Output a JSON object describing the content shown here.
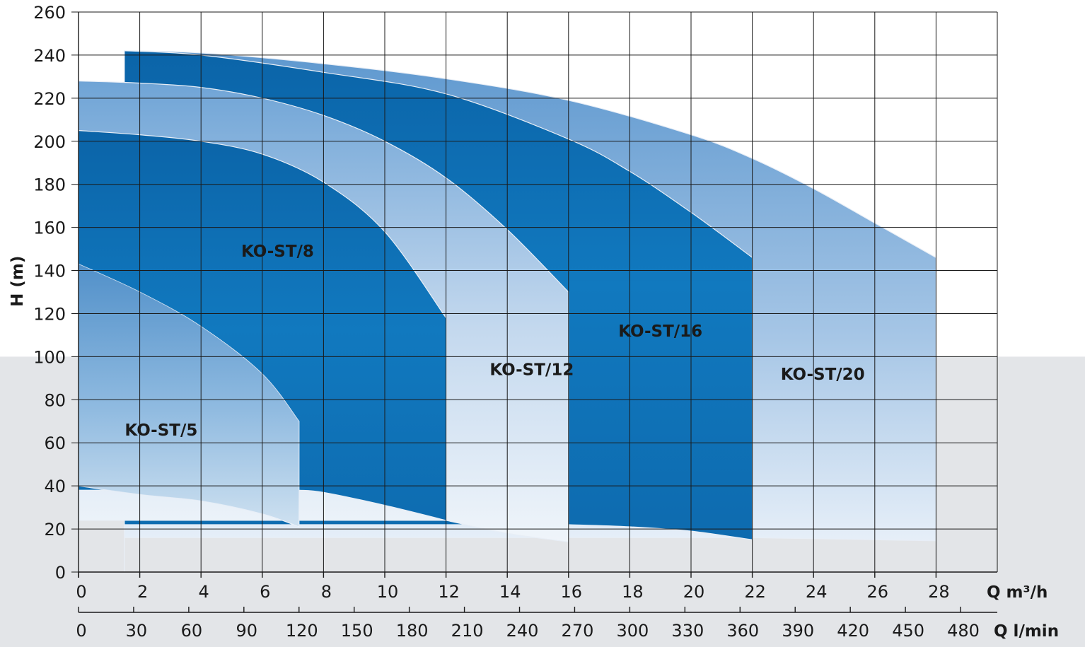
{
  "chart_data": {
    "type": "area",
    "ylabel": "H (m)",
    "x_unit_primary": "Q m³/h",
    "x_unit_secondary": "Q l/min",
    "xlim": [
      0,
      30
    ],
    "ylim": [
      0,
      260
    ],
    "x_ticks": [
      0,
      2,
      4,
      6,
      8,
      10,
      12,
      14,
      16,
      18,
      20,
      22,
      24,
      26,
      28
    ],
    "x_tick_labels": [
      "0",
      "2",
      "4",
      "6",
      "8",
      "10",
      "12",
      "14",
      "16",
      "18",
      "20",
      "22",
      "24",
      "26",
      "28"
    ],
    "x2_tick_labels": [
      "0",
      "30",
      "60",
      "90",
      "120",
      "150",
      "180",
      "210",
      "240",
      "270",
      "300",
      "330",
      "360",
      "390",
      "420",
      "450",
      "480"
    ],
    "y_ticks": [
      0,
      20,
      40,
      60,
      80,
      100,
      120,
      140,
      160,
      180,
      200,
      220,
      240,
      260
    ],
    "y_tick_labels": [
      "0",
      "20",
      "40",
      "60",
      "80",
      "100",
      "120",
      "140",
      "160",
      "180",
      "200",
      "220",
      "240",
      "260"
    ],
    "grid": true,
    "background_band_below_y": 100,
    "colors": {
      "dark_blue": "#0f6eb3",
      "light_blue": "#8fb7df",
      "pale": "#f2f6fb",
      "band_grey": "#e3e5e8",
      "grid": "#1a1a1a"
    },
    "series": [
      {
        "name": "KO-ST/20",
        "label_at": [
          24.3,
          92
        ],
        "x_range": [
          1.5,
          28
        ],
        "top": [
          [
            1.5,
            242
          ],
          [
            4,
            241
          ],
          [
            8,
            236
          ],
          [
            12,
            229
          ],
          [
            16,
            219
          ],
          [
            20,
            203
          ],
          [
            22,
            192
          ],
          [
            24,
            178
          ],
          [
            26,
            162
          ],
          [
            28,
            146
          ]
        ],
        "bottom": [
          [
            22,
            16
          ],
          [
            24,
            15.5
          ],
          [
            26,
            15
          ],
          [
            28,
            14.5
          ]
        ]
      },
      {
        "name": "KO-ST/16",
        "label_at": [
          19,
          112
        ],
        "x_range": [
          1.5,
          22
        ],
        "top": [
          [
            1.5,
            242
          ],
          [
            4,
            240
          ],
          [
            8,
            232
          ],
          [
            12,
            222
          ],
          [
            16,
            201
          ],
          [
            18,
            186
          ],
          [
            20,
            167
          ],
          [
            22,
            146
          ]
        ],
        "bottom": [
          [
            16,
            22
          ],
          [
            18,
            21
          ],
          [
            20,
            19
          ],
          [
            22,
            15
          ]
        ]
      },
      {
        "name": "KO-ST/12",
        "label_at": [
          14.8,
          94
        ],
        "x_range": [
          0,
          16
        ],
        "top": [
          [
            0,
            228
          ],
          [
            2,
            227
          ],
          [
            4,
            225
          ],
          [
            6,
            220
          ],
          [
            8,
            212
          ],
          [
            10,
            200
          ],
          [
            12,
            183
          ],
          [
            14,
            159
          ],
          [
            16,
            130
          ]
        ],
        "bottom": [
          [
            12,
            24
          ],
          [
            14,
            18
          ],
          [
            16,
            14
          ]
        ]
      },
      {
        "name": "KO-ST/8",
        "label_at": [
          6.5,
          149
        ],
        "x_range": [
          0,
          12
        ],
        "top": [
          [
            0,
            205
          ],
          [
            2,
            203
          ],
          [
            4,
            200
          ],
          [
            6,
            194
          ],
          [
            8,
            181
          ],
          [
            10,
            158
          ],
          [
            12,
            118
          ]
        ],
        "bottom": [
          [
            7.2,
            38
          ],
          [
            8,
            37
          ],
          [
            10,
            31
          ],
          [
            12,
            24
          ]
        ]
      },
      {
        "name": "KO-ST/5",
        "label_at": [
          2.7,
          66
        ],
        "x_range": [
          0,
          7.2
        ],
        "top": [
          [
            0,
            143
          ],
          [
            2,
            130
          ],
          [
            4,
            114
          ],
          [
            6,
            92
          ],
          [
            7.2,
            70
          ]
        ],
        "bottom": [
          [
            0,
            40
          ],
          [
            2,
            36
          ],
          [
            4,
            33
          ],
          [
            6,
            27
          ],
          [
            7.2,
            21
          ]
        ]
      }
    ]
  }
}
